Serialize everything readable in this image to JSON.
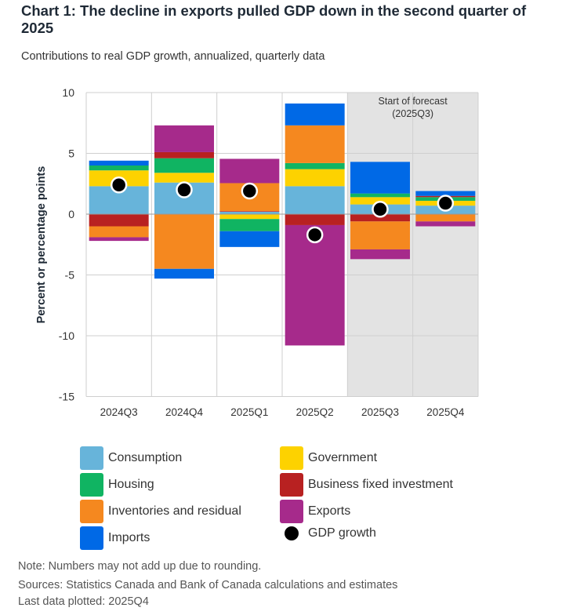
{
  "title": "Chart 1: The decline in exports pulled GDP down in the second quarter of 2025",
  "subtitle": "Contributions to real GDP growth, annualized, quarterly data",
  "chart_data": {
    "type": "bar",
    "stacked": true,
    "ylabel": "Percent or percentage points",
    "ylim": [
      -15,
      10
    ],
    "yticks": [
      10,
      5,
      0,
      -5,
      -10,
      -15
    ],
    "grid": true,
    "categories": [
      "2024Q3",
      "2024Q4",
      "2025Q1",
      "2025Q2",
      "2025Q3",
      "2025Q4"
    ],
    "forecast_annotation": {
      "line1": "Start of forecast",
      "line2": "(2025Q3)",
      "start_category": "2025Q3"
    },
    "series": [
      {
        "name": "Consumption",
        "color": "#67b4da",
        "values": [
          2.3,
          2.6,
          0.2,
          2.3,
          0.8,
          0.7
        ]
      },
      {
        "name": "Government",
        "color": "#fdd200",
        "values": [
          1.3,
          0.8,
          -0.4,
          1.4,
          0.6,
          0.4
        ]
      },
      {
        "name": "Housing",
        "color": "#10b462",
        "values": [
          0.4,
          1.2,
          -1.0,
          0.5,
          0.3,
          0.3
        ]
      },
      {
        "name": "Business fixed investment",
        "color": "#b82121",
        "values": [
          -1.0,
          0.5,
          0.05,
          -0.9,
          -0.6,
          0.1
        ]
      },
      {
        "name": "Inventories and residual",
        "color": "#f5881f",
        "values": [
          -0.9,
          -4.5,
          2.3,
          3.1,
          -2.3,
          -0.6
        ]
      },
      {
        "name": "Exports",
        "color": "#a62a8b",
        "values": [
          -0.3,
          2.2,
          2.0,
          -9.9,
          -0.8,
          -0.4
        ]
      },
      {
        "name": "Imports",
        "color": "#0069e6",
        "values": [
          0.4,
          -0.8,
          -1.3,
          1.8,
          2.6,
          0.4
        ]
      }
    ],
    "line_series": {
      "name": "GDP growth",
      "color": "#000000",
      "values": [
        2.4,
        2.0,
        1.9,
        -1.7,
        0.4,
        0.9
      ]
    },
    "legend_placement": "bottom"
  },
  "footer": {
    "note": "Note: Numbers may not add up due to rounding.",
    "sources": "Sources: Statistics Canada and Bank of Canada calculations and estimates",
    "last": "Last data plotted: 2025Q4"
  }
}
